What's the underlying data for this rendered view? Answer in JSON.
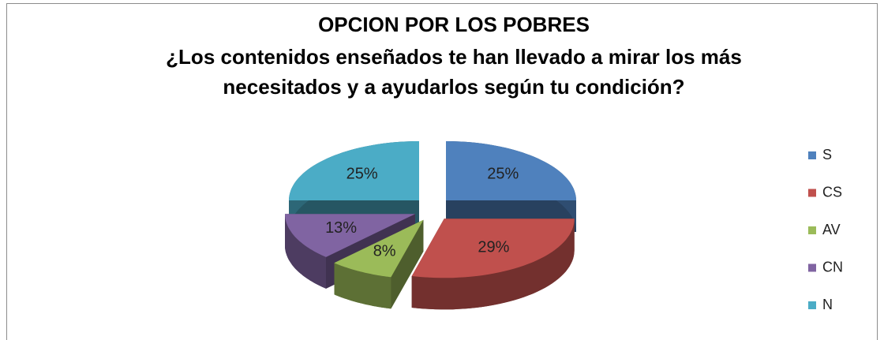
{
  "chart_data": {
    "type": "pie",
    "title": "OPCION POR LOS POBRES",
    "subtitle": [
      "¿Los contenidos enseñados te han llevado a mirar los más",
      "necesitados y a ayudarlos según tu condición?"
    ],
    "categories": [
      "S",
      "CS",
      "AV",
      "CN",
      "N"
    ],
    "values": [
      25,
      29,
      8,
      13,
      25
    ],
    "value_labels": [
      "25%",
      "29%",
      "8%",
      "13%",
      "25%"
    ],
    "colors": [
      "#4f81bd",
      "#c0504d",
      "#9bbb59",
      "#8064a2",
      "#4bacc6"
    ],
    "legend": "right"
  }
}
